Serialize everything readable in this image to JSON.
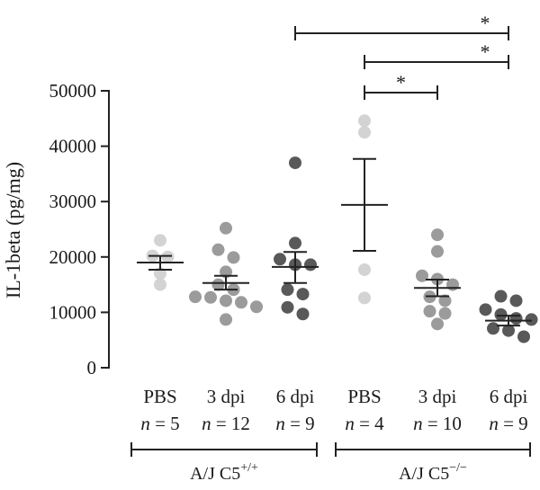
{
  "chart_data": {
    "type": "scatter",
    "ylabel": "IL-1beta (pg/mg)",
    "ylim": [
      0,
      50000
    ],
    "yticks": [
      0,
      10000,
      20000,
      30000,
      40000,
      50000
    ],
    "grid": false,
    "categories": [
      {
        "label": "PBS",
        "n": "n = 5",
        "group": "A/J C5+/+",
        "color": "#d3d3d3",
        "values": [
          23000,
          20200,
          20000,
          17000,
          15000
        ],
        "mean": 19000,
        "sem_low": 17700,
        "sem_high": 20200
      },
      {
        "label": "3 dpi",
        "n": "n = 12",
        "group": "A/J C5+/+",
        "color": "#9b9b9b",
        "values": [
          25200,
          21300,
          19900,
          17300,
          15000,
          14100,
          12800,
          12700,
          12100,
          11800,
          11000,
          8700
        ],
        "mean": 15300,
        "sem_low": 14100,
        "sem_high": 16600
      },
      {
        "label": "6 dpi",
        "n": "n = 9",
        "group": "A/J C5+/+",
        "color": "#595959",
        "values": [
          37000,
          22500,
          19600,
          18600,
          18600,
          14100,
          13300,
          10900,
          9700
        ],
        "mean": 18200,
        "sem_low": 15300,
        "sem_high": 20900
      },
      {
        "label": "PBS",
        "n": "n = 4",
        "group": "A/J C5−/−",
        "color": "#d3d3d3",
        "values": [
          44600,
          42500,
          17700,
          12600
        ],
        "mean": 29400,
        "sem_low": 21100,
        "sem_high": 37700
      },
      {
        "label": "3 dpi",
        "n": "n = 10",
        "group": "A/J C5−/−",
        "color": "#9b9b9b",
        "values": [
          24000,
          21000,
          16600,
          16000,
          15000,
          12800,
          12100,
          10200,
          9800,
          7900
        ],
        "mean": 14400,
        "sem_low": 12900,
        "sem_high": 15900
      },
      {
        "label": "6 dpi",
        "n": "n = 9",
        "group": "A/J C5−/−",
        "color": "#595959",
        "values": [
          12900,
          12100,
          10500,
          9600,
          8900,
          8700,
          7100,
          6700,
          5600
        ],
        "mean": 8500,
        "sem_low": 7600,
        "sem_high": 9400
      }
    ],
    "groups": [
      {
        "label_base": "A/J C5",
        "label_sup": "+/+",
        "from": 0,
        "to": 2
      },
      {
        "label_base": "A/J C5",
        "label_sup": "−/−",
        "from": 3,
        "to": 5
      }
    ],
    "significance": [
      {
        "from": 2,
        "to": 5,
        "label": "*"
      },
      {
        "from": 3,
        "to": 5,
        "label": "*"
      },
      {
        "from": 3,
        "to": 4,
        "label": "*"
      }
    ]
  }
}
